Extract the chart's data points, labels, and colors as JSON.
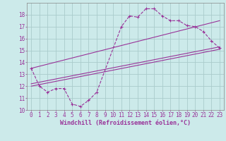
{
  "xlabel": "Windchill (Refroidissement éolien,°C)",
  "background_color": "#cceaea",
  "grid_color": "#aacccc",
  "line_color": "#993399",
  "xlim": [
    -0.5,
    23.5
  ],
  "ylim": [
    10,
    19
  ],
  "yticks": [
    10,
    11,
    12,
    13,
    14,
    15,
    16,
    17,
    18
  ],
  "xticks": [
    0,
    1,
    2,
    3,
    4,
    5,
    6,
    7,
    8,
    9,
    10,
    11,
    12,
    13,
    14,
    15,
    16,
    17,
    18,
    19,
    20,
    21,
    22,
    23
  ],
  "series1_x": [
    0,
    1,
    2,
    3,
    4,
    5,
    6,
    7,
    8,
    11,
    12,
    13,
    14,
    15,
    16,
    17,
    18,
    19,
    20,
    21,
    22,
    23
  ],
  "series1_y": [
    13.5,
    12.0,
    11.5,
    11.8,
    11.8,
    10.5,
    10.3,
    10.8,
    11.5,
    17.0,
    17.9,
    17.8,
    18.5,
    18.5,
    17.9,
    17.5,
    17.5,
    17.1,
    17.0,
    16.6,
    15.8,
    15.2
  ],
  "trend1_x": [
    0,
    23
  ],
  "trend1_y": [
    12.0,
    15.1
  ],
  "trend2_x": [
    0,
    23
  ],
  "trend2_y": [
    13.5,
    17.5
  ],
  "trend3_x": [
    0,
    23
  ],
  "trend3_y": [
    12.2,
    15.3
  ],
  "font_size": 6,
  "tick_font_size": 5.5
}
